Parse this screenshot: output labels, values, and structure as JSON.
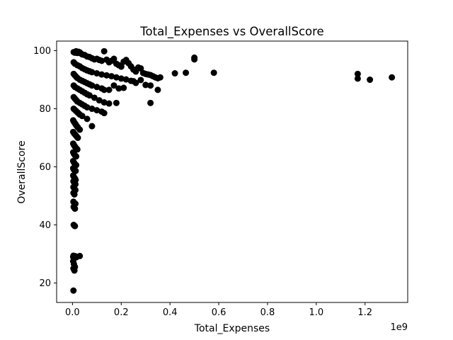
{
  "chart_data": {
    "type": "scatter",
    "title": "Total_Expenses vs OverallScore",
    "xlabel": "Total_Expenses",
    "ylabel": "OverallScore",
    "x_offset_label": "1e9",
    "x_multiplier": 1000000000,
    "xlim": [
      -0.065,
      1.375
    ],
    "ylim": [
      13.3,
      103.3
    ],
    "xticks": [
      0.0,
      0.2,
      0.4,
      0.6,
      0.8,
      1.0,
      1.2
    ],
    "xtick_labels": [
      "0.0",
      "0.2",
      "0.4",
      "0.6",
      "0.8",
      "1.0",
      "1.2"
    ],
    "yticks": [
      20,
      40,
      60,
      80,
      100
    ],
    "ytick_labels": [
      "20",
      "40",
      "60",
      "80",
      "100"
    ],
    "grid": false,
    "legend": null,
    "marker_color": "#000000",
    "series": [
      {
        "x": [
          0.005,
          0.01,
          0.015,
          0.02,
          0.025,
          0.03,
          0.035,
          0.04,
          0.05,
          0.06,
          0.07,
          0.08,
          0.09,
          0.1,
          0.11,
          0.12,
          0.13,
          0.14,
          0.15,
          0.16,
          0.17,
          0.18,
          0.19,
          0.2,
          0.21,
          0.22,
          0.23,
          0.24,
          0.25,
          0.26,
          0.27,
          0.28,
          0.29,
          0.3,
          0.31,
          0.32,
          0.33,
          0.34,
          0.35,
          0.36,
          0.005,
          0.01,
          0.02,
          0.03,
          0.04,
          0.05,
          0.06,
          0.07,
          0.08,
          0.1,
          0.12,
          0.14,
          0.16,
          0.18,
          0.2,
          0.22,
          0.24,
          0.26,
          0.28,
          0.3,
          0.32,
          0.35,
          0.005,
          0.01,
          0.015,
          0.02,
          0.03,
          0.04,
          0.05,
          0.06,
          0.07,
          0.08,
          0.1,
          0.12,
          0.13,
          0.15,
          0.17,
          0.19,
          0.21,
          0.25,
          0.32,
          0.005,
          0.01,
          0.02,
          0.03,
          0.04,
          0.05,
          0.06,
          0.07,
          0.09,
          0.11,
          0.13,
          0.15,
          0.18,
          0.005,
          0.01,
          0.015,
          0.02,
          0.03,
          0.04,
          0.05,
          0.06,
          0.08,
          0.1,
          0.12,
          0.13,
          0.005,
          0.01,
          0.015,
          0.02,
          0.025,
          0.03,
          0.04,
          0.06,
          0.08,
          0.003,
          0.006,
          0.01,
          0.014,
          0.018,
          0.022,
          0.03,
          0.003,
          0.006,
          0.01,
          0.014,
          0.018,
          0.022,
          0.003,
          0.006,
          0.01,
          0.015,
          0.02,
          0.003,
          0.006,
          0.01,
          0.015,
          0.003,
          0.006,
          0.01,
          0.015,
          0.003,
          0.006,
          0.01,
          0.013,
          0.003,
          0.006,
          0.01,
          0.013,
          0.004,
          0.008,
          0.012,
          0.004,
          0.008,
          0.012,
          0.004,
          0.008,
          0.004,
          0.008,
          0.012,
          0.005,
          0.01,
          0.005,
          0.01,
          0.004,
          0.008,
          0.003,
          0.007,
          0.012,
          0.016,
          0.03,
          0.003,
          0.006,
          0.01,
          0.004,
          0.008,
          0.004,
          0.42,
          0.465,
          0.5,
          0.5,
          0.58,
          1.17,
          1.17,
          1.22,
          1.31
        ],
        "y": [
          99.5,
          99.3,
          99.8,
          99.2,
          99.6,
          99.4,
          99.0,
          98.7,
          98.5,
          98.0,
          97.8,
          97.4,
          97.0,
          97.2,
          96.8,
          96.5,
          99.8,
          96.9,
          96.0,
          96.5,
          97.2,
          95.5,
          95.0,
          94.5,
          96.2,
          96.8,
          95.7,
          94.6,
          93.5,
          92.8,
          94.2,
          93.9,
          92.3,
          92.0,
          91.8,
          91.6,
          91.2,
          90.8,
          90.5,
          90.8,
          96.0,
          95.5,
          95.0,
          94.6,
          94.0,
          93.6,
          93.2,
          92.9,
          92.6,
          92.2,
          91.8,
          91.5,
          91.2,
          90.8,
          90.4,
          90.1,
          89.6,
          88.9,
          89.9,
          88.2,
          88.0,
          86.5,
          92.0,
          91.5,
          91.0,
          90.6,
          90.0,
          89.6,
          89.2,
          88.8,
          88.4,
          88.0,
          87.5,
          87.0,
          86.5,
          86.5,
          88.0,
          87.0,
          87.2,
          89.5,
          82.0,
          88.0,
          87.5,
          87.0,
          86.5,
          86.0,
          85.5,
          85.0,
          84.6,
          83.8,
          82.9,
          82.2,
          81.8,
          82.0,
          84.0,
          83.5,
          83.0,
          82.5,
          82.0,
          81.5,
          81.0,
          80.5,
          80.0,
          79.5,
          79.0,
          78.5,
          80.0,
          79.6,
          79.2,
          78.8,
          78.4,
          78.0,
          77.5,
          76.5,
          74.0,
          76.0,
          75.5,
          75.0,
          74.5,
          74.0,
          73.6,
          72.8,
          72.0,
          71.6,
          71.2,
          70.8,
          70.4,
          70.0,
          68.0,
          67.5,
          67.0,
          66.5,
          66.0,
          65.0,
          64.5,
          64.0,
          63.6,
          62.0,
          61.5,
          61.0,
          60.6,
          59.5,
          59.0,
          58.6,
          58.6,
          57.0,
          56.5,
          56.0,
          55.5,
          55.0,
          54.5,
          54.0,
          53.0,
          52.5,
          52.0,
          51.0,
          50.5,
          48.0,
          47.5,
          47.3,
          46.2,
          45.6,
          40.0,
          39.6,
          29.4,
          29.0,
          29.0,
          28.7,
          29.2,
          28.9,
          29.3,
          27.5,
          26.5,
          25.5,
          25.0,
          24.3,
          17.4,
          92.2,
          92.4,
          97.0,
          97.6,
          92.4,
          92.0,
          90.4,
          90.0,
          90.8
        ]
      }
    ]
  }
}
